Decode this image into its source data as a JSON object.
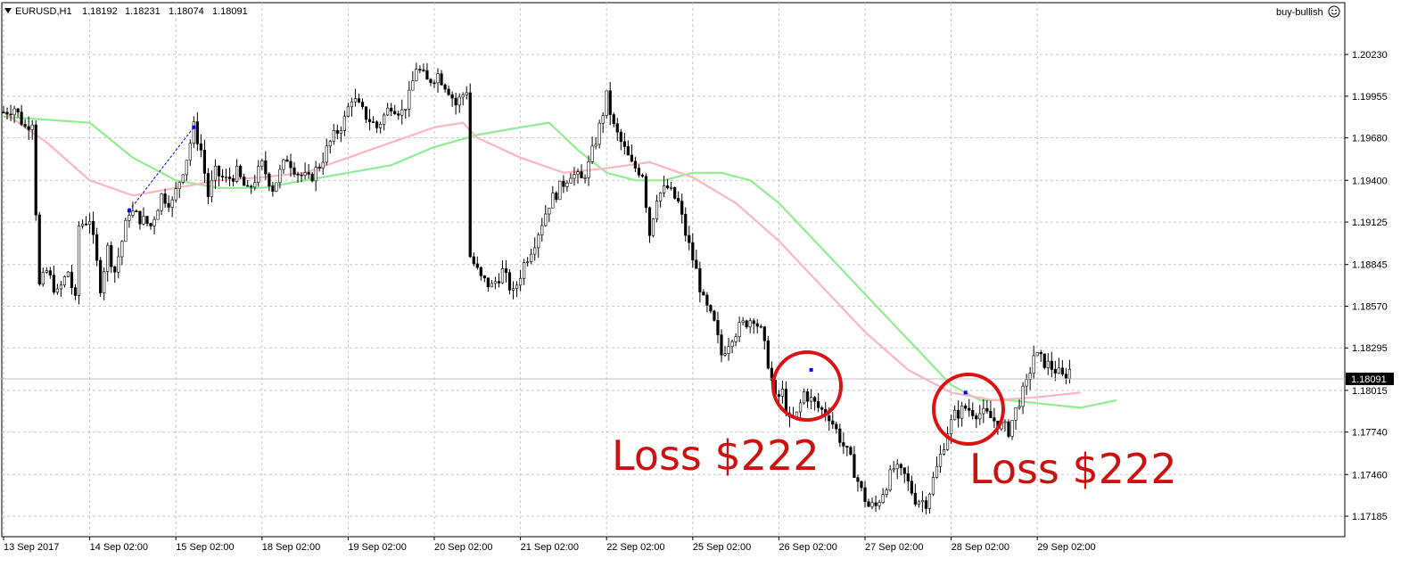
{
  "header": {
    "symbol": "EURUSD,H1",
    "open": "1.18192",
    "high": "1.18231",
    "low": "1.18074",
    "close": "1.18091",
    "indicator": "buy-bullish",
    "smiley_icon": "smiley-face-icon",
    "menu_icon": "triangle-down-icon"
  },
  "current_price": "1.18091",
  "chart_data": {
    "type": "candlestick",
    "title": "",
    "ylim": [
      1.1705,
      1.2046
    ],
    "y_ticks": [
      "1.20230",
      "1.19955",
      "1.19680",
      "1.19400",
      "1.19125",
      "1.18845",
      "1.18570",
      "1.18295",
      "1.18015",
      "1.17740",
      "1.17460",
      "1.17185"
    ],
    "x_ticks": [
      "13 Sep 2017",
      "14 Sep 02:00",
      "15 Sep 02:00",
      "18 Sep 02:00",
      "19 Sep 02:00",
      "20 Sep 02:00",
      "21 Sep 02:00",
      "22 Sep 02:00",
      "25 Sep 02:00",
      "26 Sep 02:00",
      "27 Sep 02:00",
      "28 Sep 02:00",
      "29 Sep 02:00"
    ],
    "bars_per_day": 24,
    "price_path": [
      [
        0,
        1.1985
      ],
      [
        3,
        1.1988
      ],
      [
        6,
        1.1975
      ],
      [
        8,
        1.198
      ],
      [
        9,
        1.192
      ],
      [
        10,
        1.187
      ],
      [
        12,
        1.188
      ],
      [
        15,
        1.1865
      ],
      [
        18,
        1.188
      ],
      [
        20,
        1.186
      ],
      [
        21,
        1.191
      ],
      [
        24,
        1.1915
      ],
      [
        27,
        1.187
      ],
      [
        29,
        1.1895
      ],
      [
        31,
        1.188
      ],
      [
        35,
        1.192
      ],
      [
        38,
        1.1915
      ],
      [
        41,
        1.191
      ],
      [
        44,
        1.193
      ],
      [
        47,
        1.1925
      ],
      [
        51,
        1.1955
      ],
      [
        53,
        1.1975
      ],
      [
        55,
        1.196
      ],
      [
        57,
        1.193
      ],
      [
        59,
        1.1945
      ],
      [
        62,
        1.194
      ],
      [
        65,
        1.1945
      ],
      [
        68,
        1.1932
      ],
      [
        72,
        1.195
      ],
      [
        75,
        1.1935
      ],
      [
        79,
        1.1955
      ],
      [
        82,
        1.1945
      ],
      [
        85,
        1.194
      ],
      [
        88,
        1.195
      ],
      [
        91,
        1.1965
      ],
      [
        95,
        1.198
      ],
      [
        97,
        1.1995
      ],
      [
        100,
        1.1985
      ],
      [
        104,
        1.1975
      ],
      [
        108,
        1.199
      ],
      [
        111,
        1.1985
      ],
      [
        113,
        1.1995
      ],
      [
        115,
        1.2015
      ],
      [
        118,
        1.2005
      ],
      [
        121,
        1.201
      ],
      [
        124,
        1.2
      ],
      [
        126,
        1.199
      ],
      [
        129,
        1.2
      ],
      [
        130,
        1.189
      ],
      [
        133,
        1.1875
      ],
      [
        136,
        1.187
      ],
      [
        139,
        1.188
      ],
      [
        142,
        1.1865
      ],
      [
        145,
        1.1885
      ],
      [
        148,
        1.19
      ],
      [
        152,
        1.1925
      ],
      [
        155,
        1.1935
      ],
      [
        158,
        1.1945
      ],
      [
        161,
        1.194
      ],
      [
        163,
        1.195
      ],
      [
        166,
        1.1975
      ],
      [
        168,
        1.1995
      ],
      [
        170,
        1.1975
      ],
      [
        173,
        1.196
      ],
      [
        175,
        1.195
      ],
      [
        178,
        1.1945
      ],
      [
        180,
        1.1905
      ],
      [
        182,
        1.193
      ],
      [
        185,
        1.1935
      ],
      [
        188,
        1.1925
      ],
      [
        190,
        1.1905
      ],
      [
        193,
        1.188
      ],
      [
        195,
        1.186
      ],
      [
        198,
        1.1845
      ],
      [
        200,
        1.1825
      ],
      [
        203,
        1.1838
      ],
      [
        206,
        1.1845
      ],
      [
        209,
        1.185
      ],
      [
        211,
        1.184
      ],
      [
        213,
        1.182
      ],
      [
        215,
        1.1795
      ],
      [
        217,
        1.18
      ],
      [
        219,
        1.178
      ],
      [
        221,
        1.1785
      ],
      [
        223,
        1.18
      ],
      [
        225,
        1.1795
      ],
      [
        227,
        1.179
      ],
      [
        230,
        1.1785
      ],
      [
        233,
        1.177
      ],
      [
        236,
        1.1755
      ],
      [
        239,
        1.1735
      ],
      [
        241,
        1.1725
      ],
      [
        243,
        1.1725
      ],
      [
        245,
        1.1735
      ],
      [
        248,
        1.175
      ],
      [
        251,
        1.1745
      ],
      [
        254,
        1.173
      ],
      [
        257,
        1.1728
      ],
      [
        260,
        1.175
      ],
      [
        263,
        1.1775
      ],
      [
        265,
        1.1785
      ],
      [
        268,
        1.179
      ],
      [
        271,
        1.1787
      ],
      [
        274,
        1.1785
      ],
      [
        277,
        1.178
      ],
      [
        280,
        1.1775
      ],
      [
        283,
        1.1795
      ],
      [
        285,
        1.1805
      ],
      [
        287,
        1.1825
      ],
      [
        290,
        1.182
      ],
      [
        293,
        1.1815
      ],
      [
        295,
        1.181
      ],
      [
        297,
        1.1815
      ]
    ],
    "series": [
      {
        "color": "#90ee90",
        "points": [
          [
            0,
            1.1982
          ],
          [
            24,
            1.1978
          ],
          [
            36,
            1.1955
          ],
          [
            48,
            1.194
          ],
          [
            60,
            1.1935
          ],
          [
            72,
            1.1935
          ],
          [
            84,
            1.194
          ],
          [
            96,
            1.1945
          ],
          [
            108,
            1.195
          ],
          [
            120,
            1.1962
          ],
          [
            132,
            1.197
          ],
          [
            144,
            1.1975
          ],
          [
            152,
            1.1978
          ],
          [
            160,
            1.196
          ],
          [
            168,
            1.1945
          ],
          [
            176,
            1.194
          ],
          [
            184,
            1.194
          ],
          [
            192,
            1.1945
          ],
          [
            200,
            1.1945
          ],
          [
            208,
            1.194
          ],
          [
            216,
            1.1925
          ],
          [
            224,
            1.1905
          ],
          [
            232,
            1.1885
          ],
          [
            240,
            1.1865
          ],
          [
            248,
            1.1845
          ],
          [
            256,
            1.1825
          ],
          [
            264,
            1.1805
          ],
          [
            272,
            1.1795
          ],
          [
            280,
            1.1795
          ],
          [
            288,
            1.1793
          ],
          [
            300,
            1.179
          ],
          [
            310,
            1.1795
          ]
        ]
      },
      {
        "color": "#ffb6c1",
        "points": [
          [
            0,
            1.1985
          ],
          [
            12,
            1.1965
          ],
          [
            24,
            1.194
          ],
          [
            36,
            1.193
          ],
          [
            48,
            1.1935
          ],
          [
            60,
            1.194
          ],
          [
            72,
            1.1942
          ],
          [
            84,
            1.1945
          ],
          [
            96,
            1.1955
          ],
          [
            108,
            1.1965
          ],
          [
            120,
            1.1975
          ],
          [
            128,
            1.1978
          ],
          [
            132,
            1.1968
          ],
          [
            144,
            1.1955
          ],
          [
            156,
            1.1945
          ],
          [
            168,
            1.1948
          ],
          [
            180,
            1.1952
          ],
          [
            192,
            1.1942
          ],
          [
            204,
            1.1925
          ],
          [
            216,
            1.19
          ],
          [
            228,
            1.187
          ],
          [
            240,
            1.184
          ],
          [
            252,
            1.1815
          ],
          [
            264,
            1.18
          ],
          [
            276,
            1.1795
          ],
          [
            288,
            1.1797
          ],
          [
            300,
            1.18
          ]
        ]
      }
    ],
    "trade_lines": [
      {
        "color": "#0000ff",
        "from": [
          35,
          1.192
        ],
        "to": [
          53,
          1.1975
        ]
      }
    ],
    "annotations": [
      {
        "text": "Loss $222",
        "at": [
          218,
          1.1791
        ]
      },
      {
        "text": "Loss $222",
        "at": [
          275,
          1.1789
        ]
      }
    ],
    "grid": true
  }
}
